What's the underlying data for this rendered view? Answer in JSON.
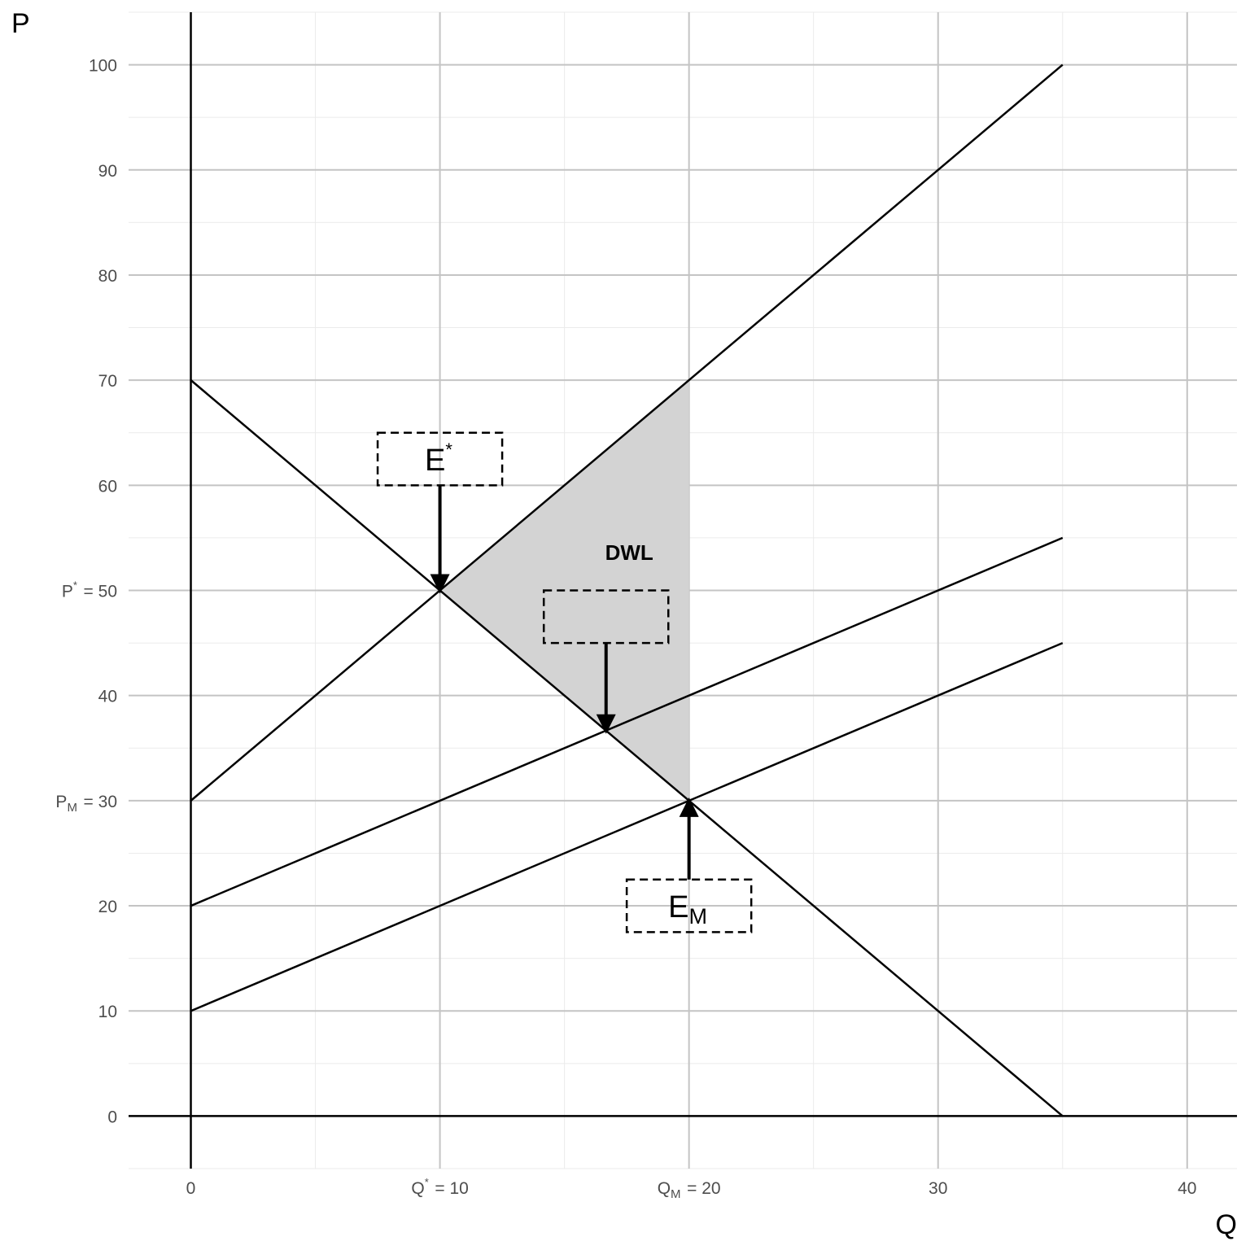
{
  "chart_data": {
    "type": "line",
    "xlabel": "Q",
    "ylabel": "P",
    "xlim": [
      -2.5,
      42
    ],
    "ylim": [
      -5,
      105
    ],
    "grid": true,
    "x_ticks": [
      {
        "value": 0,
        "base": "0",
        "sup": "",
        "sub": "",
        "suffix": ""
      },
      {
        "value": 10,
        "base": "Q",
        "sup": "*",
        "sub": "",
        "suffix": " = 10"
      },
      {
        "value": 20,
        "base": "Q",
        "sup": "",
        "sub": "M",
        "suffix": " = 20"
      },
      {
        "value": 30,
        "base": "30",
        "sup": "",
        "sub": "",
        "suffix": ""
      },
      {
        "value": 40,
        "base": "40",
        "sup": "",
        "sub": "",
        "suffix": ""
      }
    ],
    "y_ticks": [
      {
        "value": 0,
        "base": "0",
        "sup": "",
        "sub": "",
        "suffix": ""
      },
      {
        "value": 10,
        "base": "10",
        "sup": "",
        "sub": "",
        "suffix": ""
      },
      {
        "value": 20,
        "base": "20",
        "sup": "",
        "sub": "",
        "suffix": ""
      },
      {
        "value": 30,
        "base": "P",
        "sup": "",
        "sub": "M",
        "suffix": " = 30"
      },
      {
        "value": 40,
        "base": "40",
        "sup": "",
        "sub": "",
        "suffix": ""
      },
      {
        "value": 50,
        "base": "P",
        "sup": "*",
        "sub": "",
        "suffix": " = 50"
      },
      {
        "value": 60,
        "base": "60",
        "sup": "",
        "sub": "",
        "suffix": ""
      },
      {
        "value": 70,
        "base": "70",
        "sup": "",
        "sub": "",
        "suffix": ""
      },
      {
        "value": 80,
        "base": "80",
        "sup": "",
        "sub": "",
        "suffix": ""
      },
      {
        "value": 90,
        "base": "90",
        "sup": "",
        "sub": "",
        "suffix": ""
      },
      {
        "value": 100,
        "base": "100",
        "sup": "",
        "sub": "",
        "suffix": ""
      }
    ],
    "series": [
      {
        "points": [
          [
            0,
            70
          ],
          [
            35,
            0
          ]
        ]
      },
      {
        "points": [
          [
            0,
            30
          ],
          [
            35,
            100
          ]
        ]
      },
      {
        "points": [
          [
            0,
            20
          ],
          [
            35,
            55
          ]
        ]
      },
      {
        "points": [
          [
            0,
            10
          ],
          [
            35,
            45
          ]
        ]
      }
    ],
    "shaded_region": {
      "label": "DWL",
      "label_at": [
        17.6,
        52.9
      ],
      "points": [
        [
          10,
          50
        ],
        [
          20,
          70
        ],
        [
          20,
          30
        ]
      ],
      "color": "#d3d3d3"
    },
    "annotations": [
      {
        "label": "E",
        "sup": "*",
        "sub": "",
        "box_center": [
          10,
          62.5
        ],
        "box_size": [
          5,
          5
        ],
        "arrow_from": [
          10,
          60
        ],
        "arrow_to": [
          10,
          50
        ]
      },
      {
        "label": "",
        "sup": "",
        "sub": "",
        "box_center": [
          16.67,
          47.5
        ],
        "box_size": [
          5,
          5
        ],
        "arrow_from": [
          16.67,
          45
        ],
        "arrow_to": [
          16.67,
          36.67
        ]
      },
      {
        "label": "E",
        "sup": "",
        "sub": "M",
        "box_center": [
          20,
          20
        ],
        "box_size": [
          5,
          5
        ],
        "arrow_from": [
          20,
          22.5
        ],
        "arrow_to": [
          20,
          30
        ]
      }
    ]
  }
}
